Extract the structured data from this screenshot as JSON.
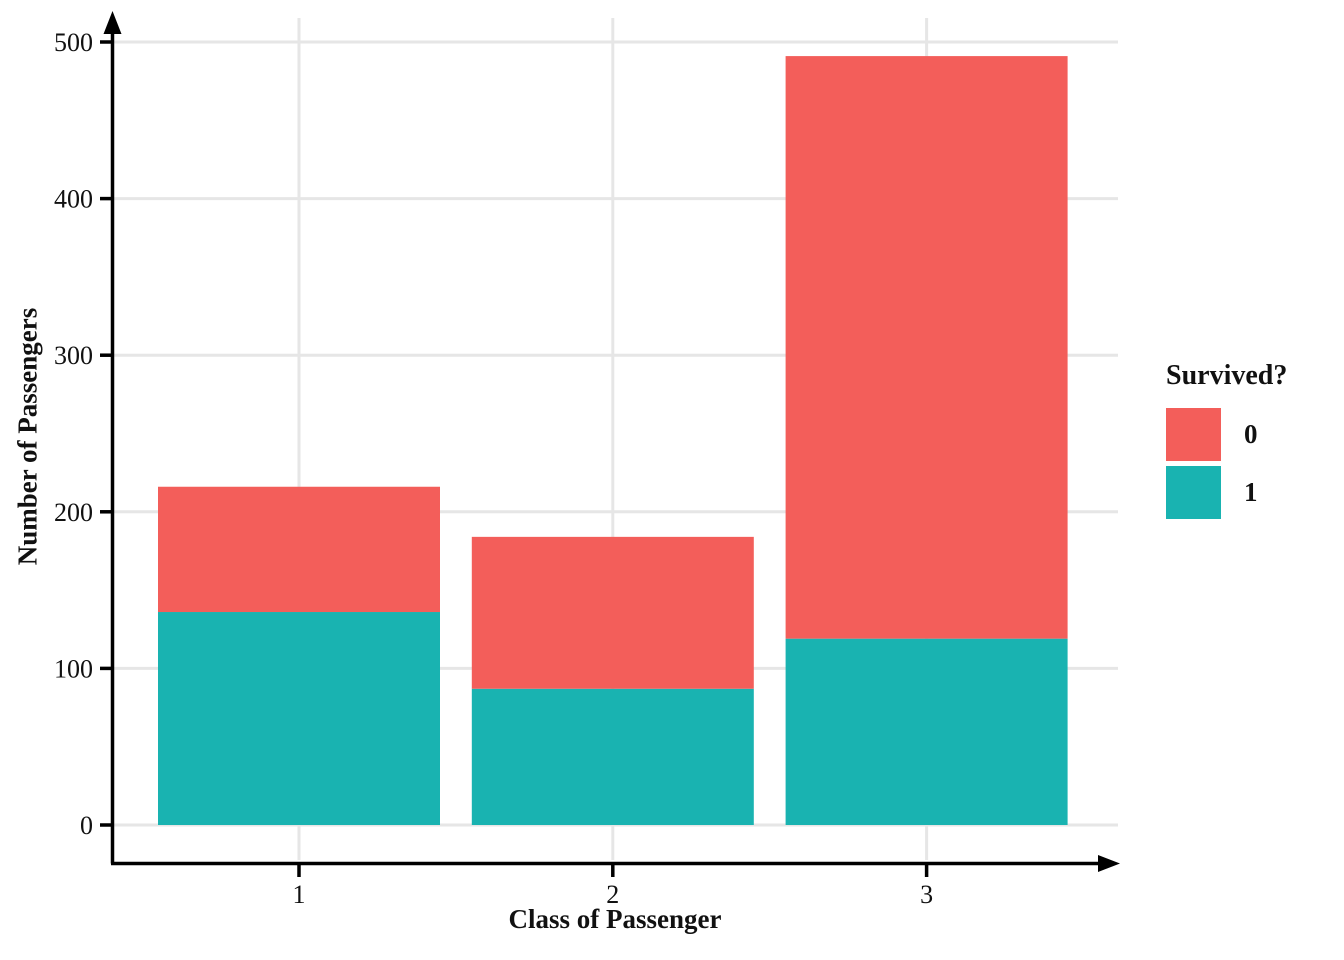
{
  "figure": {
    "xlabel": "Class of Passenger",
    "ylabel": "Number of Passengers",
    "legend_title": "Survived?"
  },
  "palette": {
    "grid": "#E6E6E6",
    "axis": "#000000",
    "tick_label": "#111111"
  },
  "chart_data": {
    "type": "bar",
    "stacked": true,
    "title": "",
    "xlabel": "Class of Passenger",
    "ylabel": "Number of Passengers",
    "categories": [
      "1",
      "2",
      "3"
    ],
    "series": [
      {
        "name": "0",
        "color": "#F35E5A",
        "values": [
          80,
          97,
          372
        ]
      },
      {
        "name": "1",
        "color": "#19B3B1",
        "values": [
          136,
          87,
          119
        ]
      }
    ],
    "stack_totals": [
      216,
      184,
      491
    ],
    "ylim": [
      0,
      500
    ],
    "yticks": [
      0,
      100,
      200,
      300,
      400,
      500
    ],
    "grid": true,
    "legend": {
      "title": "Survived?",
      "position": "right",
      "entries": [
        "0",
        "1"
      ]
    }
  }
}
